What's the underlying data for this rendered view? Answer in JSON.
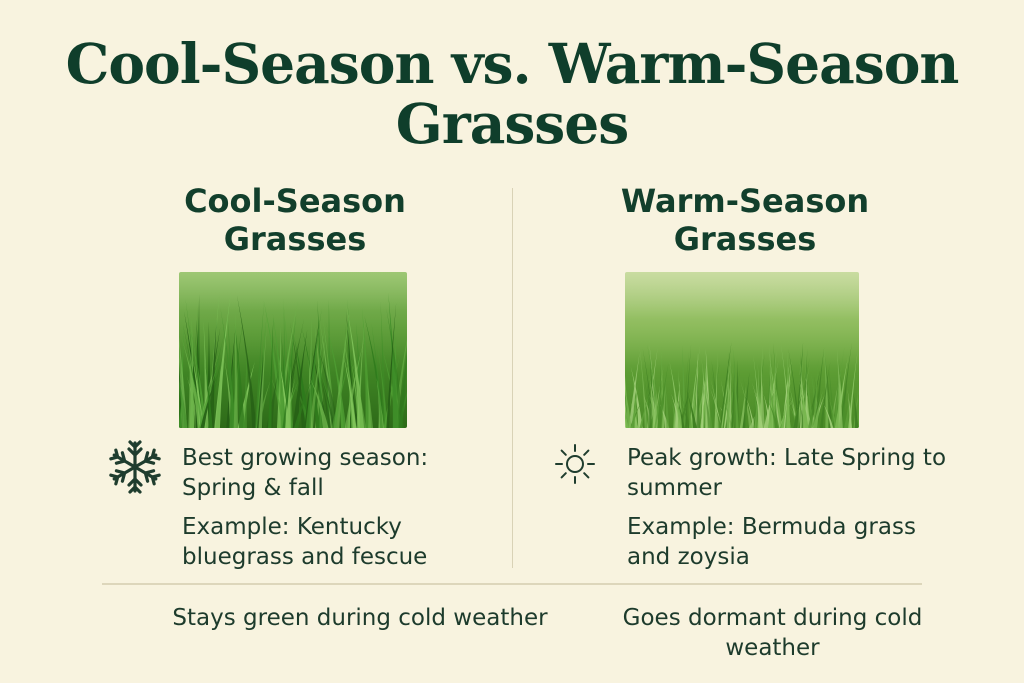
{
  "title": "Cool-Season vs. Warm-Season Grasses",
  "cool": {
    "heading": "Cool-Season Grasses",
    "image_alt": "cool-season grass photo",
    "icon": "snowflake-icon",
    "season": "Best growing season: Spring & fall",
    "example": "Example: Kentucky bluegrass and fescue",
    "cold_weather": "Stays green during cold weather"
  },
  "warm": {
    "heading": "Warm-Season Grasses",
    "image_alt": "warm-season grass photo",
    "icon": "sun-icon",
    "season": "Peak growth: Late Spring to summer",
    "example": "Example: Bermuda grass and zoysia",
    "cold_weather": "Goes dormant during cold weather"
  },
  "colors": {
    "background": "#f8f3df",
    "heading_green": "#0f3e2b",
    "text": "#1d3b2c",
    "divider": "#d9d2b6"
  }
}
